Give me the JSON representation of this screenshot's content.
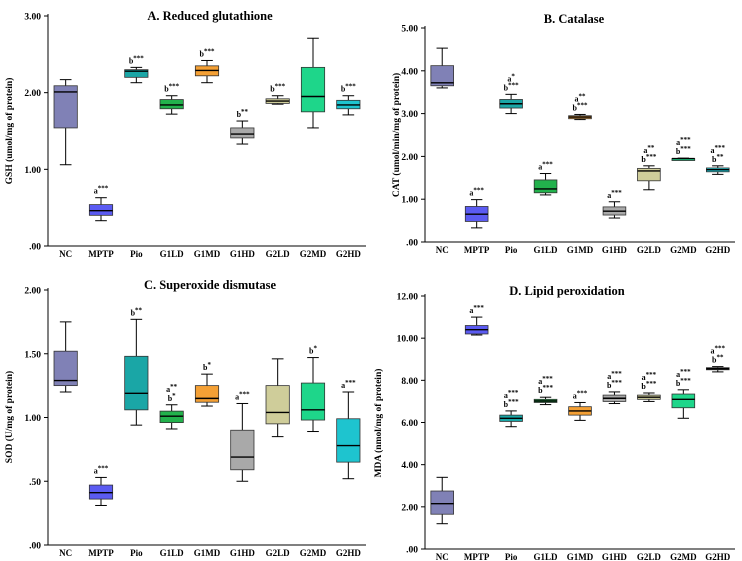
{
  "colors": {
    "NC": "#8081b6",
    "MPTP": "#5b5bf2",
    "Pio": "#1aa6a6",
    "G1LD": "#22b24c",
    "G1MD": "#f4a035",
    "G1HD": "#a9a9a9",
    "G2LD": "#cfcd9a",
    "G2MD": "#1ed68a",
    "G2HD": "#1ec4cf"
  },
  "chart_data": [
    {
      "type": "box",
      "title": "A. Reduced glutathione",
      "ylabel": "GSH (umol/mg of protein)",
      "ylim": [
        0,
        3
      ],
      "yticks": [
        0,
        1,
        2,
        3
      ],
      "ytick_labels": [
        ".00",
        "1.00",
        "2.00",
        "3.00"
      ],
      "categories": [
        "NC",
        "MPTP",
        "Pio",
        "G1LD",
        "G1MD",
        "G1HD",
        "G2LD",
        "G2MD",
        "G2HD"
      ],
      "boxes": [
        {
          "min": 1.06,
          "q1": 1.54,
          "median": 2.01,
          "q3": 2.09,
          "max": 2.17,
          "sig": []
        },
        {
          "min": 0.33,
          "q1": 0.4,
          "median": 0.46,
          "q3": 0.54,
          "max": 0.63,
          "sig": [
            "a***"
          ]
        },
        {
          "min": 2.13,
          "q1": 2.2,
          "median": 2.28,
          "q3": 2.3,
          "max": 2.33,
          "sig": [
            "b***"
          ]
        },
        {
          "min": 1.72,
          "q1": 1.79,
          "median": 1.84,
          "q3": 1.91,
          "max": 1.96,
          "sig": [
            "b***"
          ]
        },
        {
          "min": 2.13,
          "q1": 2.22,
          "median": 2.29,
          "q3": 2.35,
          "max": 2.42,
          "sig": [
            "b***"
          ]
        },
        {
          "min": 1.33,
          "q1": 1.41,
          "median": 1.46,
          "q3": 1.54,
          "max": 1.63,
          "sig": [
            "b**"
          ]
        },
        {
          "min": 1.85,
          "q1": 1.86,
          "median": 1.89,
          "q3": 1.92,
          "max": 1.96,
          "sig": [
            "b***"
          ]
        },
        {
          "min": 1.54,
          "q1": 1.75,
          "median": 1.95,
          "q3": 2.33,
          "max": 2.71,
          "sig": []
        },
        {
          "min": 1.71,
          "q1": 1.79,
          "median": 1.84,
          "q3": 1.9,
          "max": 1.96,
          "sig": [
            "b***"
          ]
        }
      ]
    },
    {
      "type": "box",
      "title": "B. Catalase",
      "ylabel": "CAT (umol/min/mg of protein)",
      "ylim": [
        0,
        5
      ],
      "yticks": [
        0,
        1,
        2,
        3,
        4,
        5
      ],
      "ytick_labels": [
        ".00",
        "1.00",
        "2.00",
        "3.00",
        "4.00",
        "5.00"
      ],
      "categories": [
        "NC",
        "MPTP",
        "Pio",
        "G1LD",
        "G1MD",
        "G1HD",
        "G2LD",
        "G2MD",
        "G2HD"
      ],
      "boxes": [
        {
          "min": 3.6,
          "q1": 3.65,
          "median": 3.72,
          "q3": 4.12,
          "max": 4.53,
          "sig": []
        },
        {
          "min": 0.33,
          "q1": 0.48,
          "median": 0.65,
          "q3": 0.83,
          "max": 0.99,
          "sig": [
            "a***"
          ]
        },
        {
          "min": 3.0,
          "q1": 3.13,
          "median": 3.23,
          "q3": 3.33,
          "max": 3.45,
          "sig": [
            "a*",
            "b***"
          ]
        },
        {
          "min": 1.1,
          "q1": 1.15,
          "median": 1.24,
          "q3": 1.45,
          "max": 1.6,
          "sig": [
            "a***"
          ]
        },
        {
          "min": 2.86,
          "q1": 2.88,
          "median": 2.92,
          "q3": 2.95,
          "max": 2.98,
          "sig": [
            "a**",
            "b***"
          ]
        },
        {
          "min": 0.56,
          "q1": 0.63,
          "median": 0.72,
          "q3": 0.82,
          "max": 0.94,
          "sig": [
            "a***"
          ]
        },
        {
          "min": 1.22,
          "q1": 1.43,
          "median": 1.66,
          "q3": 1.72,
          "max": 1.78,
          "sig": [
            "a**",
            "b***"
          ]
        },
        {
          "min": 1.94,
          "q1": 1.94,
          "median": 1.95,
          "q3": 1.95,
          "max": 1.96,
          "sig": [
            "a***",
            "b***"
          ]
        },
        {
          "min": 1.58,
          "q1": 1.64,
          "median": 1.69,
          "q3": 1.73,
          "max": 1.78,
          "sig": [
            "a***",
            "b**"
          ]
        }
      ]
    },
    {
      "type": "box",
      "title": "C. Superoxide dismutase",
      "ylabel": "SOD (U/mg of protein)",
      "ylim": [
        0,
        2
      ],
      "yticks": [
        0,
        0.5,
        1,
        1.5,
        2
      ],
      "ytick_labels": [
        ".00",
        ".50",
        "1.00",
        "1.50",
        "2.00"
      ],
      "categories": [
        "NC",
        "MPTP",
        "Pio",
        "G1LD",
        "G1MD",
        "G1HD",
        "G2LD",
        "G2MD",
        "G2HD"
      ],
      "boxes": [
        {
          "min": 1.2,
          "q1": 1.25,
          "median": 1.29,
          "q3": 1.52,
          "max": 1.75,
          "sig": []
        },
        {
          "min": 0.31,
          "q1": 0.36,
          "median": 0.41,
          "q3": 0.47,
          "max": 0.53,
          "sig": [
            "a***"
          ]
        },
        {
          "min": 0.94,
          "q1": 1.06,
          "median": 1.19,
          "q3": 1.48,
          "max": 1.77,
          "sig": [
            "b**"
          ]
        },
        {
          "min": 0.91,
          "q1": 0.96,
          "median": 1.01,
          "q3": 1.05,
          "max": 1.1,
          "sig": [
            "a**",
            "b*"
          ]
        },
        {
          "min": 1.09,
          "q1": 1.12,
          "median": 1.15,
          "q3": 1.25,
          "max": 1.34,
          "sig": [
            "b*"
          ]
        },
        {
          "min": 0.5,
          "q1": 0.59,
          "median": 0.69,
          "q3": 0.9,
          "max": 1.11,
          "sig": [
            "a***"
          ]
        },
        {
          "min": 0.85,
          "q1": 0.95,
          "median": 1.04,
          "q3": 1.25,
          "max": 1.46,
          "sig": []
        },
        {
          "min": 0.89,
          "q1": 0.98,
          "median": 1.06,
          "q3": 1.27,
          "max": 1.47,
          "sig": [
            "b*"
          ]
        },
        {
          "min": 0.52,
          "q1": 0.65,
          "median": 0.78,
          "q3": 0.99,
          "max": 1.2,
          "sig": [
            "a***"
          ]
        }
      ]
    },
    {
      "type": "box",
      "title": "D. Lipid peroxidation",
      "ylabel": "MDA (nmol/mg of protein)",
      "ylim": [
        0,
        12
      ],
      "yticks": [
        0,
        2,
        4,
        6,
        8,
        10,
        12
      ],
      "ytick_labels": [
        ".00",
        "2.00",
        "4.00",
        "6.00",
        "8.00",
        "10.00",
        "12.00"
      ],
      "categories": [
        "NC",
        "MPTP",
        "Pio",
        "G1LD",
        "G1MD",
        "G1HD",
        "G2LD",
        "G2MD",
        "G2HD"
      ],
      "boxes": [
        {
          "min": 1.2,
          "q1": 1.65,
          "median": 2.15,
          "q3": 2.75,
          "max": 3.4,
          "sig": []
        },
        {
          "min": 10.15,
          "q1": 10.2,
          "median": 10.4,
          "q3": 10.6,
          "max": 11.0,
          "sig": [
            "a***"
          ]
        },
        {
          "min": 5.8,
          "q1": 6.05,
          "median": 6.2,
          "q3": 6.35,
          "max": 6.55,
          "sig": [
            "a***",
            "b***"
          ]
        },
        {
          "min": 6.85,
          "q1": 6.95,
          "median": 7.02,
          "q3": 7.1,
          "max": 7.2,
          "sig": [
            "a***",
            "b***"
          ]
        },
        {
          "min": 6.1,
          "q1": 6.35,
          "median": 6.55,
          "q3": 6.75,
          "max": 6.95,
          "sig": [
            "a***"
          ]
        },
        {
          "min": 6.9,
          "q1": 7.0,
          "median": 7.15,
          "q3": 7.3,
          "max": 7.45,
          "sig": [
            "a***",
            "b***"
          ]
        },
        {
          "min": 7.0,
          "q1": 7.1,
          "median": 7.2,
          "q3": 7.3,
          "max": 7.4,
          "sig": [
            "a***",
            "b***"
          ]
        },
        {
          "min": 6.2,
          "q1": 6.7,
          "median": 7.1,
          "q3": 7.35,
          "max": 7.55,
          "sig": [
            "a***",
            "b***"
          ]
        },
        {
          "min": 8.4,
          "q1": 8.5,
          "median": 8.55,
          "q3": 8.6,
          "max": 8.65,
          "sig": [
            "a***",
            "b**"
          ]
        }
      ]
    }
  ]
}
